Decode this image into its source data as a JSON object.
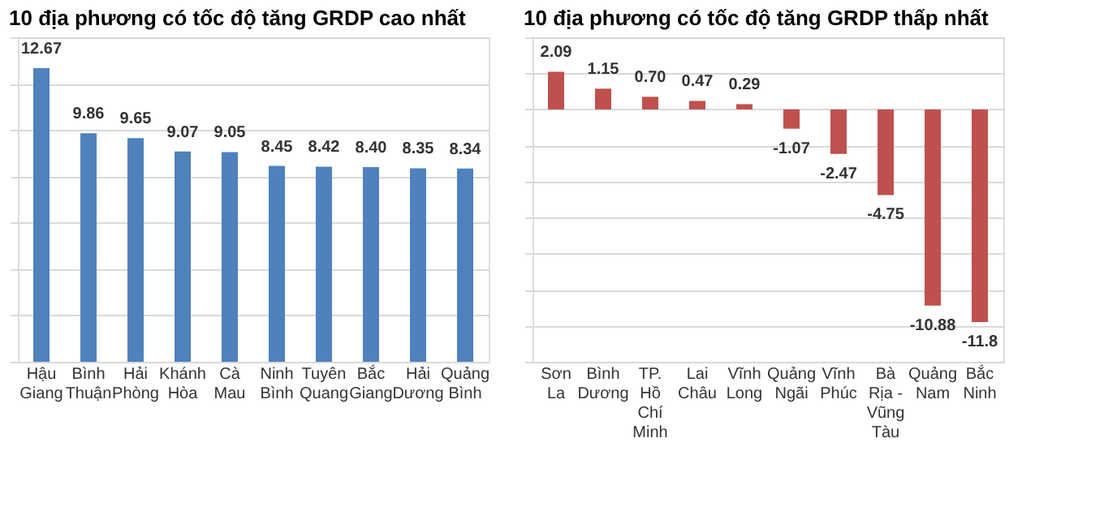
{
  "chart_data": [
    {
      "type": "bar",
      "title": "10 địa phương có tốc độ tăng GRDP cao nhất",
      "categories": [
        "Hậu Giang",
        "Bình Thuận",
        "Hải Phòng",
        "Khánh Hòa",
        "Cà Mau",
        "Ninh Bình",
        "Tuyên Quang",
        "Bắc Giang",
        "Hải Dương",
        "Quảng Bình"
      ],
      "values": [
        12.67,
        9.86,
        9.65,
        9.07,
        9.05,
        8.45,
        8.42,
        8.4,
        8.35,
        8.34
      ],
      "color": "#4f81bd",
      "value_labels": [
        "12.67",
        "9.86",
        "9.65",
        "9.07",
        "9.05",
        "8.45",
        "8.42",
        "8.40",
        "8.35",
        "8.34"
      ],
      "ylim": [
        0,
        14
      ],
      "grid": "y"
    },
    {
      "type": "bar",
      "title": "10 địa phương có tốc độ tăng GRDP thấp nhất",
      "categories": [
        "Sơn La",
        "Bình Dương",
        "TP. Hồ Chí Minh",
        "Lai Châu",
        "Vĩnh Long",
        "Quảng Ngãi",
        "Vĩnh Phúc",
        "Bà Rịa - Vũng Tàu",
        "Quảng Nam",
        "Bắc Ninh"
      ],
      "values": [
        2.09,
        1.15,
        0.7,
        0.47,
        0.29,
        -1.07,
        -2.47,
        -4.75,
        -10.88,
        -11.8
      ],
      "color": "#c0504d",
      "value_labels": [
        "2.09",
        "1.15",
        "0.70",
        "0.47",
        "0.29",
        "-1.07",
        "-2.47",
        "-4.75",
        "-10.88",
        "-11.8"
      ],
      "ylim": [
        -14,
        4
      ],
      "grid": "y"
    }
  ]
}
